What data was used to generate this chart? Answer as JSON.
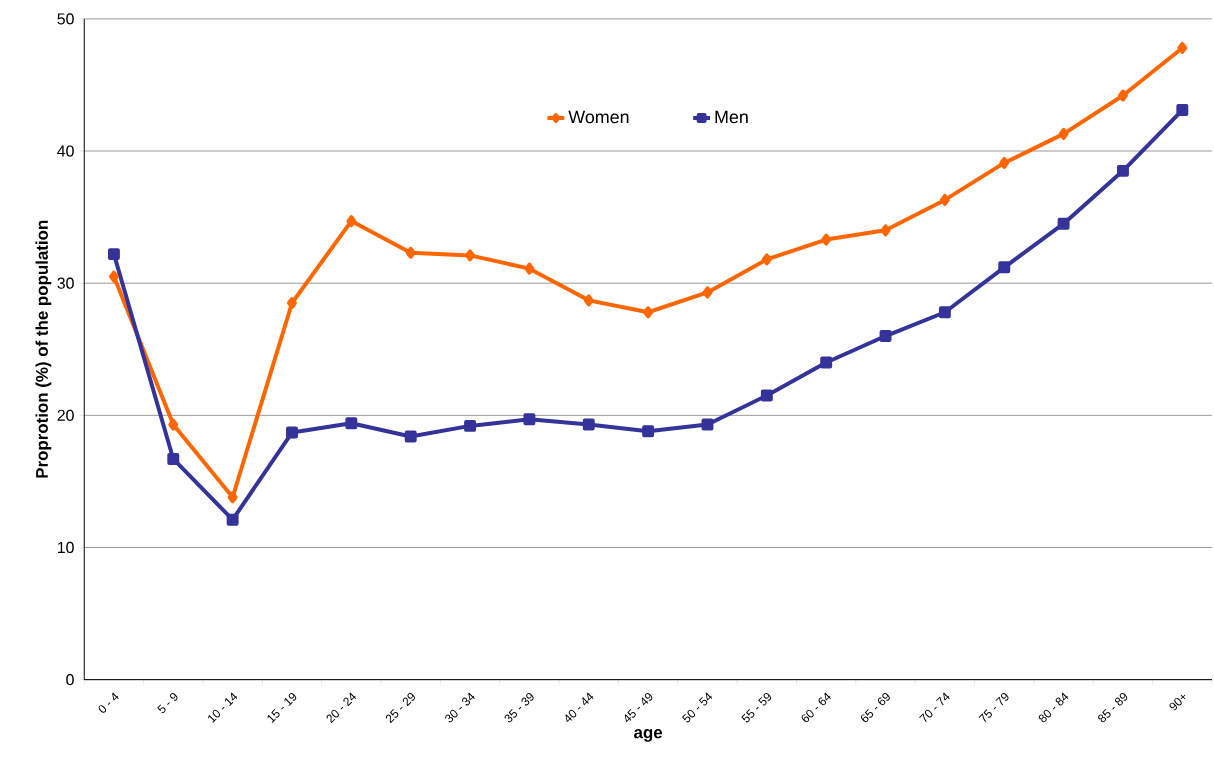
{
  "chart_data": {
    "type": "line",
    "xlabel": "age",
    "ylabel": "Proprotion (%) of the population",
    "categories": [
      "0 - 4",
      "5 - 9",
      "10 - 14",
      "15 - 19",
      "20 - 24",
      "25 - 29",
      "30 - 34",
      "35 - 39",
      "40 - 44",
      "45 - 49",
      "50 - 54",
      "55 - 59",
      "60 - 64",
      "65 - 69",
      "70 - 74",
      "75 - 79",
      "80 - 84",
      "85 - 89",
      "90+"
    ],
    "series": [
      {
        "name": "Women",
        "color": "#ff6600",
        "marker": "diamond",
        "values": [
          30.5,
          19.3,
          13.8,
          28.5,
          34.7,
          32.3,
          32.1,
          31.1,
          28.7,
          27.8,
          29.3,
          31.8,
          33.3,
          34.0,
          36.3,
          39.1,
          41.3,
          44.2,
          47.8
        ]
      },
      {
        "name": "Men",
        "color": "#333399",
        "marker": "square",
        "values": [
          32.2,
          16.7,
          12.1,
          18.7,
          19.4,
          18.4,
          19.2,
          19.7,
          19.3,
          18.8,
          19.3,
          21.5,
          24.0,
          26.0,
          27.8,
          31.2,
          34.5,
          38.5,
          43.1
        ]
      }
    ],
    "ylim": [
      0,
      50
    ],
    "yticks": [
      0,
      10,
      20,
      30,
      40,
      50
    ],
    "grid": "y",
    "legend": "top",
    "line_style": "solid"
  }
}
